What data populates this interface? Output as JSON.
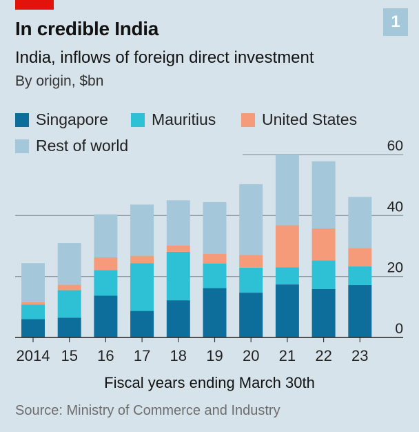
{
  "badge": "1",
  "title": "In credible India",
  "subtitle": "India, inflows of foreign direct investment",
  "unit": "By origin, $bn",
  "xaxis_title": "Fiscal years ending March 30th",
  "source": "Source: Ministry of Commerce and Industry",
  "colors": {
    "background": "#d7e3ea",
    "accent_red": "#e3120b",
    "singapore": "#0d6e9b",
    "mauritius": "#2ec1d5",
    "united_states": "#f59b7a",
    "rest_of_world": "#a4c8d9",
    "gridline": "#8c9aa6"
  },
  "legend": [
    {
      "name": "Singapore",
      "color": "#0d6e9b"
    },
    {
      "name": "Mauritius",
      "color": "#2ec1d5"
    },
    {
      "name": "United States",
      "color": "#f59b7a"
    },
    {
      "name": "Rest of world",
      "color": "#a4c8d9"
    }
  ],
  "chart_data": {
    "type": "bar",
    "stacked": true,
    "categories": [
      "2014",
      "15",
      "16",
      "17",
      "18",
      "19",
      "20",
      "21",
      "22",
      "23"
    ],
    "series": [
      {
        "name": "Singapore",
        "values": [
          6.0,
          6.5,
          13.7,
          8.7,
          12.2,
          16.2,
          14.7,
          17.4,
          15.9,
          17.2
        ]
      },
      {
        "name": "Mauritius",
        "values": [
          4.8,
          9.0,
          8.4,
          15.7,
          15.9,
          8.1,
          8.2,
          5.6,
          9.4,
          6.1
        ]
      },
      {
        "name": "United States",
        "values": [
          0.8,
          1.8,
          4.2,
          2.4,
          2.1,
          3.1,
          4.2,
          13.8,
          10.5,
          6.0
        ]
      },
      {
        "name": "Rest of world",
        "values": [
          12.8,
          13.7,
          14.1,
          16.8,
          14.8,
          17.0,
          23.2,
          23.2,
          22.0,
          16.8
        ]
      }
    ],
    "yticks": [
      0,
      20,
      40,
      60
    ],
    "ylim": [
      0,
      60
    ],
    "ylabel_position": "right",
    "grid": true,
    "legend_position": "top-left",
    "xlabel": "Fiscal years ending March 30th"
  }
}
